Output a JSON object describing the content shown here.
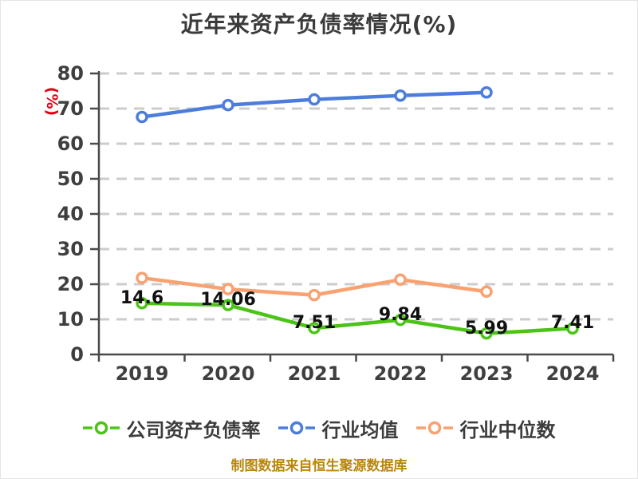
{
  "title": "近年来资产负债率情况(%)",
  "y_axis_label": "(%)",
  "caption": "制图数据来自恒生聚源数据库",
  "chart_data": {
    "type": "line",
    "title": "近年来资产负债率情况(%)",
    "categories": [
      "2019",
      "2020",
      "2021",
      "2022",
      "2023",
      "2024"
    ],
    "xlabel": "",
    "ylabel": "(%)",
    "ylim": [
      0,
      80
    ],
    "yticks": [
      0,
      10,
      20,
      30,
      40,
      50,
      60,
      70,
      80
    ],
    "grid": "horizontal-dashed",
    "legend_position": "bottom",
    "series": [
      {
        "name": "公司资产负债率",
        "color": "#4CC417",
        "marker": "circle-white-fill",
        "values": [
          14.6,
          14.06,
          7.51,
          9.84,
          5.99,
          7.41
        ],
        "data_labels": [
          "14.6",
          "14.06",
          "7.51",
          "9.84",
          "5.99",
          "7.41"
        ]
      },
      {
        "name": "行业均值",
        "color": "#4D7DDC",
        "marker": "circle-white-fill",
        "values": [
          67.6,
          71.0,
          72.6,
          73.7,
          74.6,
          null
        ],
        "data_labels": null
      },
      {
        "name": "行业中位数",
        "color": "#F9A170",
        "marker": "circle-white-fill",
        "values": [
          21.8,
          18.6,
          16.9,
          21.3,
          17.9,
          null
        ],
        "data_labels": null
      }
    ],
    "colors": {
      "grid": "#CCCCCC",
      "axis": "#4A4A4A",
      "tick_text": "#3F3F3F",
      "title_text": "#3B3B3B",
      "unit_label": "#E60012",
      "caption_text": "#B8860B",
      "data_label_text": "#111111"
    }
  }
}
